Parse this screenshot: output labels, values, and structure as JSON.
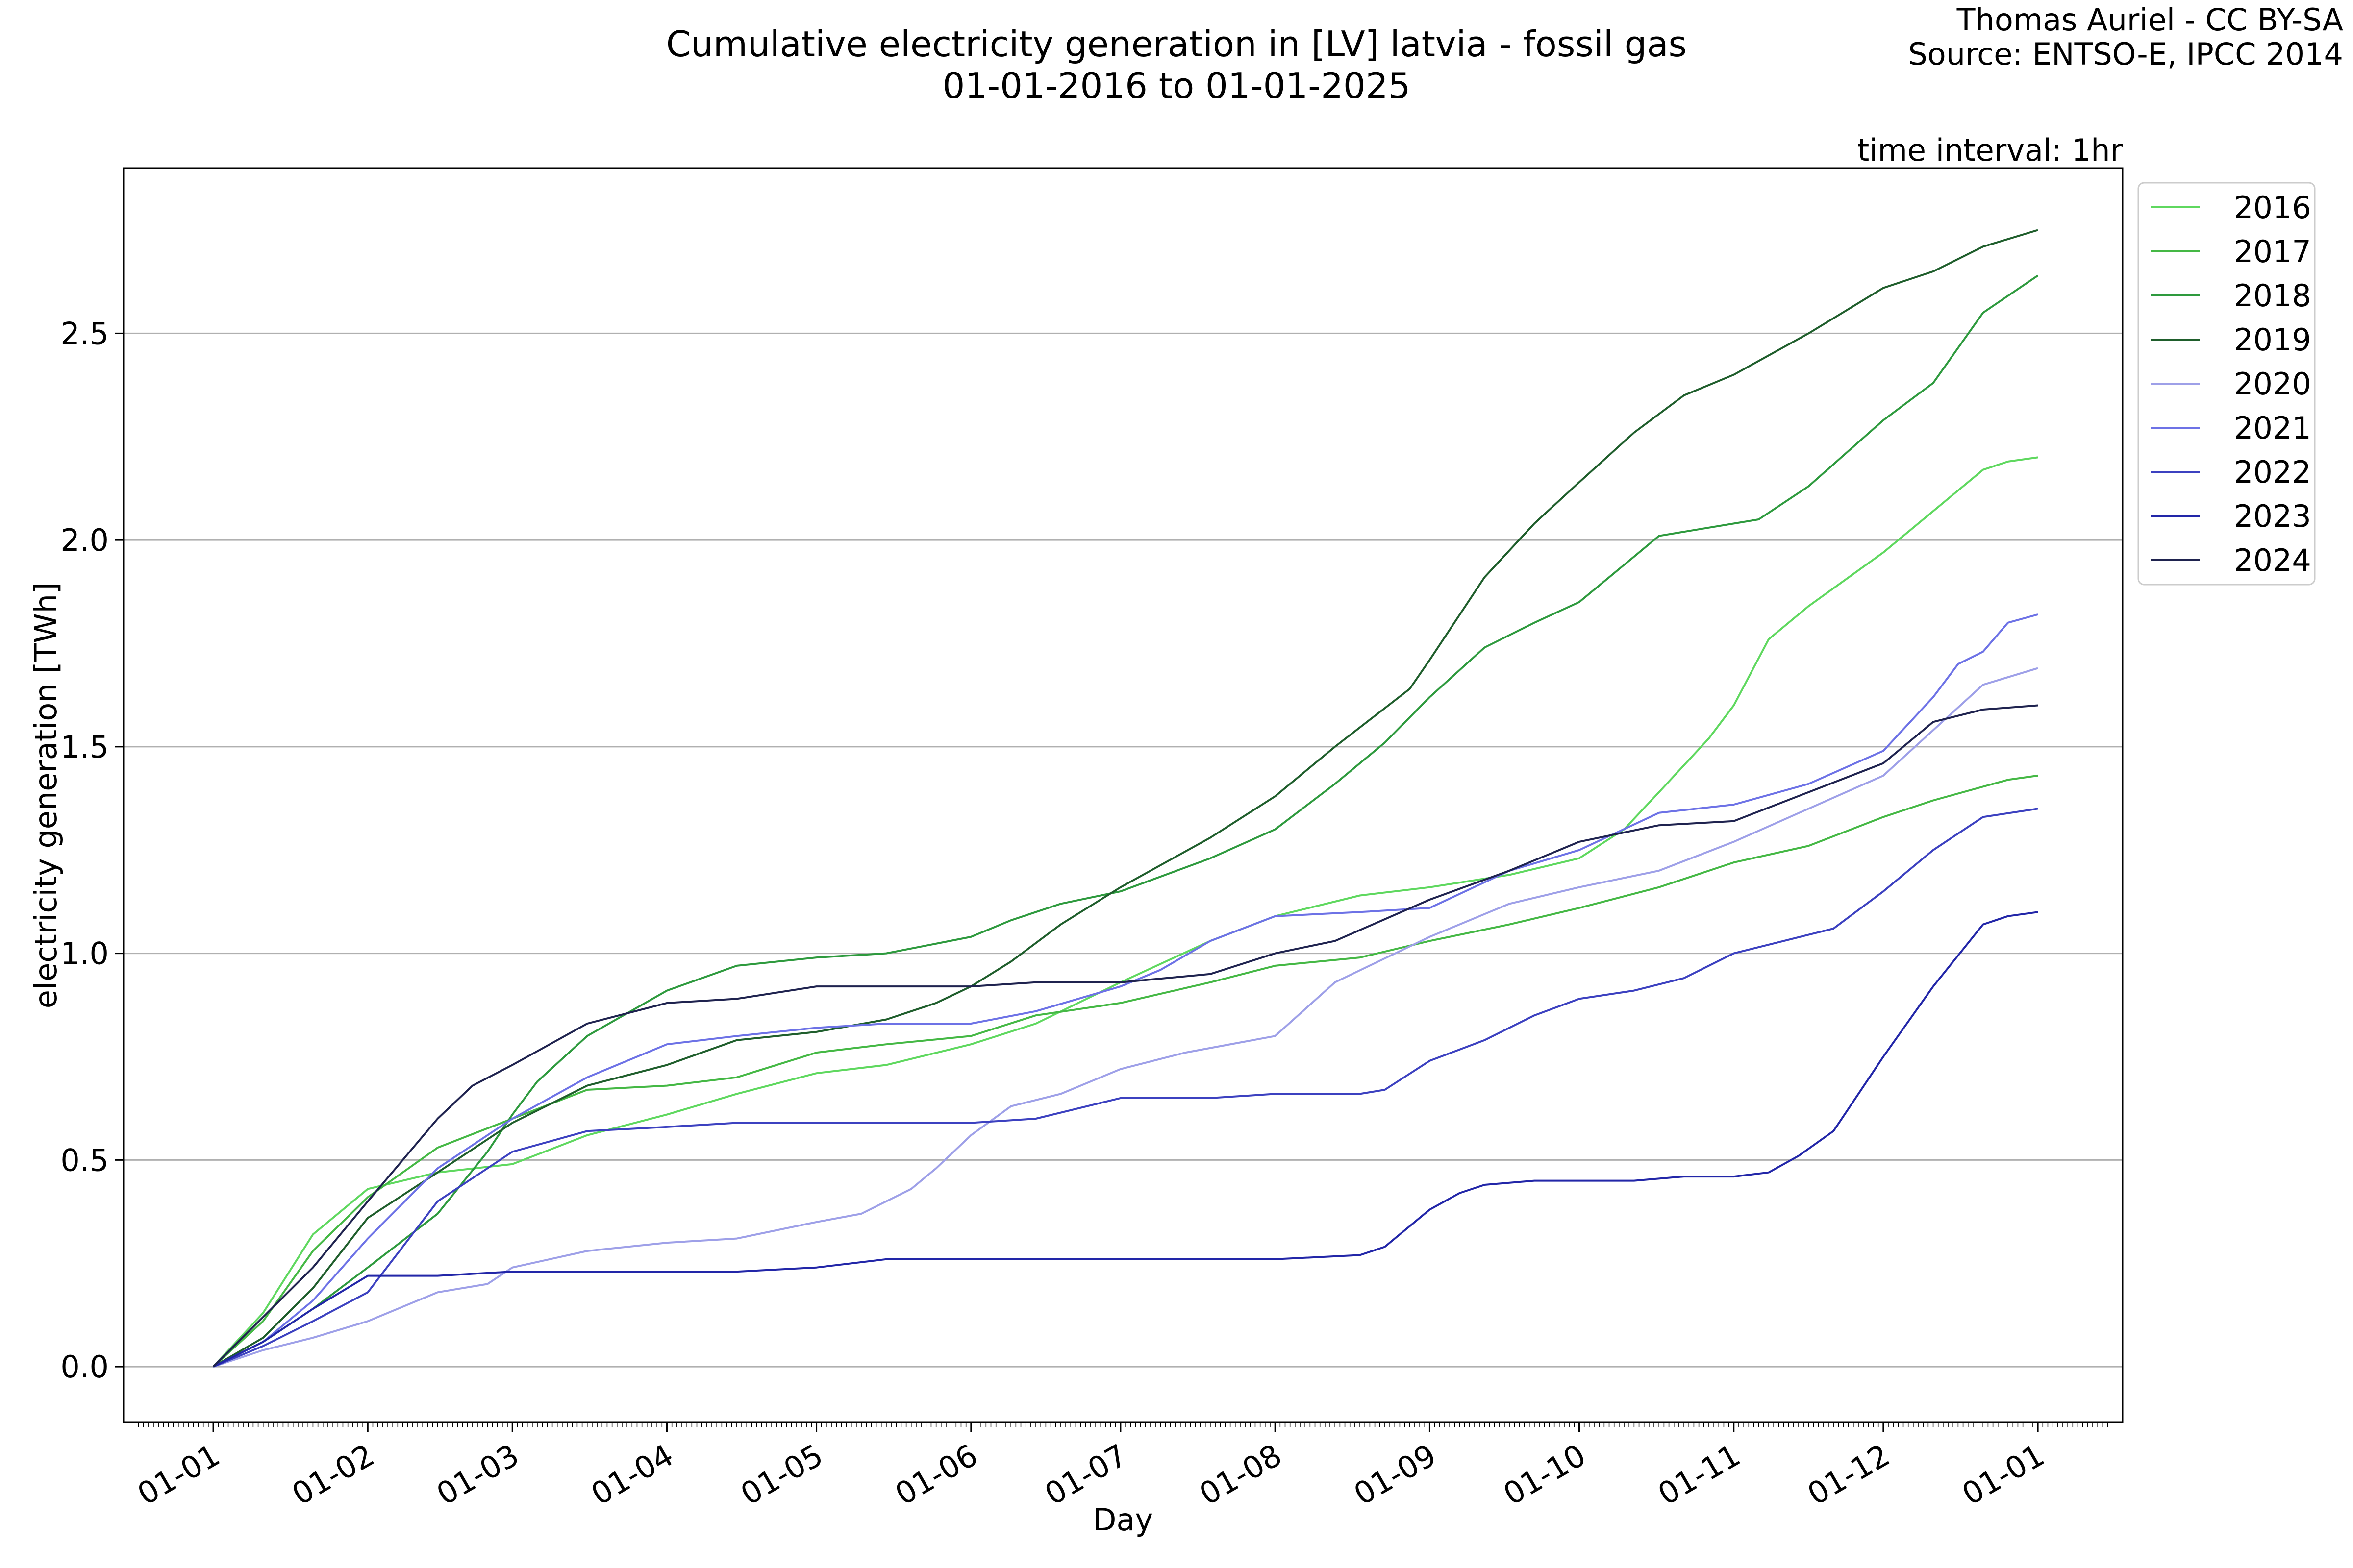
{
  "chart_data": {
    "type": "line",
    "title": "Cumulative electricity generation in [LV] latvia - fossil gas",
    "subtitle": "01-01-2016 to 01-01-2025",
    "credit_lines": [
      "Thomas Auriel - CC BY-SA",
      "Source: ENTSO-E, IPCC 2014"
    ],
    "annotation": "time interval: 1hr",
    "xlabel": "Day",
    "ylabel": "electricity generation [TWh]",
    "xlim": [
      -18,
      383
    ],
    "ylim": [
      -0.135,
      2.9
    ],
    "x_ticks": [
      {
        "day": 0,
        "label": "01-01"
      },
      {
        "day": 31,
        "label": "01-02"
      },
      {
        "day": 60,
        "label": "01-03"
      },
      {
        "day": 91,
        "label": "01-04"
      },
      {
        "day": 121,
        "label": "01-05"
      },
      {
        "day": 152,
        "label": "01-06"
      },
      {
        "day": 182,
        "label": "01-07"
      },
      {
        "day": 213,
        "label": "01-08"
      },
      {
        "day": 244,
        "label": "01-09"
      },
      {
        "day": 274,
        "label": "01-10"
      },
      {
        "day": 305,
        "label": "01-11"
      },
      {
        "day": 335,
        "label": "01-12"
      },
      {
        "day": 366,
        "label": "01-01"
      }
    ],
    "y_ticks": [
      {
        "value": 0.0,
        "label": "0.0"
      },
      {
        "value": 0.5,
        "label": "0.5"
      },
      {
        "value": 1.0,
        "label": "1.0"
      },
      {
        "value": 1.5,
        "label": "1.5"
      },
      {
        "value": 2.0,
        "label": "2.0"
      },
      {
        "value": 2.5,
        "label": "2.5"
      }
    ],
    "grid": "horizontal",
    "legend_position": "outside-top-right",
    "x_unit": "day of year",
    "series": [
      {
        "name": "2016",
        "color": "#5fd85f",
        "x": [
          0,
          10,
          20,
          31,
          45,
          60,
          75,
          91,
          105,
          121,
          135,
          152,
          165,
          182,
          200,
          213,
          230,
          244,
          260,
          274,
          283,
          290,
          300,
          305,
          312,
          320,
          335,
          345,
          355,
          360,
          366
        ],
        "y": [
          0,
          0.13,
          0.32,
          0.43,
          0.47,
          0.49,
          0.56,
          0.61,
          0.66,
          0.71,
          0.73,
          0.78,
          0.83,
          0.93,
          1.03,
          1.09,
          1.14,
          1.16,
          1.19,
          1.23,
          1.3,
          1.39,
          1.52,
          1.6,
          1.76,
          1.84,
          1.97,
          2.07,
          2.17,
          2.19,
          2.2
        ]
      },
      {
        "name": "2017",
        "color": "#45b845",
        "x": [
          0,
          10,
          20,
          31,
          45,
          60,
          75,
          91,
          105,
          121,
          135,
          152,
          165,
          182,
          200,
          213,
          230,
          244,
          260,
          274,
          290,
          305,
          320,
          335,
          345,
          360,
          366
        ],
        "y": [
          0,
          0.11,
          0.28,
          0.41,
          0.53,
          0.6,
          0.67,
          0.68,
          0.7,
          0.76,
          0.78,
          0.8,
          0.85,
          0.88,
          0.93,
          0.97,
          0.99,
          1.03,
          1.07,
          1.11,
          1.16,
          1.22,
          1.26,
          1.33,
          1.37,
          1.42,
          1.43
        ]
      },
      {
        "name": "2018",
        "color": "#2e9a3e",
        "x": [
          0,
          10,
          20,
          31,
          45,
          55,
          60,
          65,
          75,
          91,
          105,
          121,
          135,
          152,
          160,
          170,
          182,
          200,
          213,
          225,
          235,
          244,
          255,
          265,
          274,
          285,
          290,
          300,
          310,
          320,
          335,
          345,
          355,
          366
        ],
        "y": [
          0,
          0.06,
          0.14,
          0.24,
          0.37,
          0.52,
          0.61,
          0.69,
          0.8,
          0.91,
          0.97,
          0.99,
          1.0,
          1.04,
          1.08,
          1.12,
          1.15,
          1.23,
          1.3,
          1.41,
          1.51,
          1.62,
          1.74,
          1.8,
          1.85,
          1.96,
          2.01,
          2.03,
          2.05,
          2.13,
          2.29,
          2.38,
          2.55,
          2.64
        ]
      },
      {
        "name": "2019",
        "color": "#1f5e2c",
        "x": [
          0,
          10,
          20,
          31,
          45,
          60,
          75,
          91,
          105,
          121,
          135,
          145,
          152,
          160,
          170,
          182,
          200,
          213,
          225,
          240,
          244,
          255,
          265,
          274,
          285,
          295,
          305,
          320,
          335,
          345,
          355,
          366
        ],
        "y": [
          0,
          0.07,
          0.19,
          0.36,
          0.47,
          0.59,
          0.68,
          0.73,
          0.79,
          0.81,
          0.84,
          0.88,
          0.92,
          0.98,
          1.07,
          1.16,
          1.28,
          1.38,
          1.5,
          1.64,
          1.71,
          1.91,
          2.04,
          2.14,
          2.26,
          2.35,
          2.4,
          2.5,
          2.61,
          2.65,
          2.71,
          2.75
        ]
      },
      {
        "name": "2020",
        "color": "#9ea0e8",
        "x": [
          0,
          10,
          20,
          31,
          45,
          55,
          60,
          75,
          91,
          105,
          121,
          130,
          135,
          140,
          145,
          152,
          160,
          170,
          182,
          195,
          213,
          225,
          244,
          260,
          274,
          290,
          305,
          320,
          335,
          345,
          355,
          366
        ],
        "y": [
          0,
          0.04,
          0.07,
          0.11,
          0.18,
          0.2,
          0.24,
          0.28,
          0.3,
          0.31,
          0.35,
          0.37,
          0.4,
          0.43,
          0.48,
          0.56,
          0.63,
          0.66,
          0.72,
          0.76,
          0.8,
          0.93,
          1.04,
          1.12,
          1.16,
          1.2,
          1.27,
          1.35,
          1.43,
          1.54,
          1.65,
          1.69
        ]
      },
      {
        "name": "2021",
        "color": "#6d72e6",
        "x": [
          0,
          10,
          20,
          31,
          45,
          60,
          75,
          91,
          105,
          121,
          135,
          152,
          165,
          182,
          190,
          200,
          213,
          230,
          244,
          260,
          274,
          290,
          305,
          320,
          335,
          345,
          350,
          355,
          360,
          366
        ],
        "y": [
          0,
          0.06,
          0.16,
          0.31,
          0.48,
          0.6,
          0.7,
          0.78,
          0.8,
          0.82,
          0.83,
          0.83,
          0.86,
          0.92,
          0.96,
          1.03,
          1.09,
          1.1,
          1.11,
          1.2,
          1.25,
          1.34,
          1.36,
          1.41,
          1.49,
          1.62,
          1.7,
          1.73,
          1.8,
          1.82
        ]
      },
      {
        "name": "2022",
        "color": "#3c41c0",
        "x": [
          0,
          10,
          20,
          31,
          45,
          60,
          75,
          91,
          105,
          121,
          135,
          152,
          165,
          182,
          200,
          213,
          230,
          235,
          244,
          255,
          265,
          274,
          285,
          295,
          305,
          315,
          325,
          335,
          345,
          355,
          366
        ],
        "y": [
          0,
          0.05,
          0.11,
          0.18,
          0.4,
          0.52,
          0.57,
          0.58,
          0.59,
          0.59,
          0.59,
          0.59,
          0.6,
          0.65,
          0.65,
          0.66,
          0.66,
          0.67,
          0.74,
          0.79,
          0.85,
          0.89,
          0.91,
          0.94,
          1.0,
          1.03,
          1.06,
          1.15,
          1.25,
          1.33,
          1.35
        ]
      },
      {
        "name": "2023",
        "color": "#2226a8",
        "x": [
          0,
          10,
          20,
          31,
          45,
          60,
          75,
          91,
          105,
          121,
          135,
          152,
          165,
          182,
          200,
          213,
          230,
          235,
          240,
          244,
          250,
          255,
          265,
          274,
          285,
          295,
          305,
          312,
          318,
          325,
          335,
          345,
          355,
          360,
          366
        ],
        "y": [
          0,
          0.06,
          0.14,
          0.22,
          0.22,
          0.23,
          0.23,
          0.23,
          0.23,
          0.24,
          0.26,
          0.26,
          0.26,
          0.26,
          0.26,
          0.26,
          0.27,
          0.29,
          0.34,
          0.38,
          0.42,
          0.44,
          0.45,
          0.45,
          0.45,
          0.46,
          0.46,
          0.47,
          0.51,
          0.57,
          0.75,
          0.92,
          1.07,
          1.09,
          1.1
        ]
      },
      {
        "name": "2024",
        "color": "#1f234f",
        "x": [
          0,
          10,
          20,
          31,
          45,
          52,
          60,
          75,
          91,
          105,
          121,
          135,
          152,
          165,
          182,
          200,
          213,
          225,
          244,
          260,
          274,
          290,
          305,
          320,
          335,
          345,
          355,
          366
        ],
        "y": [
          0,
          0.12,
          0.24,
          0.4,
          0.6,
          0.68,
          0.73,
          0.83,
          0.88,
          0.89,
          0.92,
          0.92,
          0.92,
          0.93,
          0.93,
          0.95,
          1.0,
          1.03,
          1.13,
          1.2,
          1.27,
          1.31,
          1.32,
          1.39,
          1.46,
          1.56,
          1.59,
          1.6
        ]
      }
    ]
  }
}
